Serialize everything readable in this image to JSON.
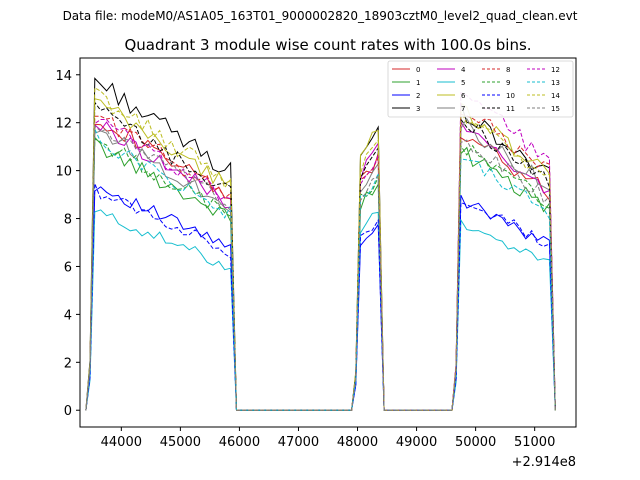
{
  "chart_data": {
    "type": "line",
    "suptitle": "Data file: modeM0/AS1A05_163T01_9000002820_18903cztM0_level2_quad_clean.evt",
    "title": "Quadrant 3 module wise count rates with 100.0s bins.",
    "xlabel": "",
    "ylabel": "",
    "x_offset_label": "+2.914e8",
    "xlim": [
      43300,
      51700
    ],
    "ylim": [
      -0.7,
      14.7
    ],
    "xticks": [
      44000,
      45000,
      46000,
      47000,
      48000,
      49000,
      50000,
      51000
    ],
    "xtick_labels": [
      "44000",
      "45000",
      "46000",
      "47000",
      "48000",
      "49000",
      "50000",
      "51000"
    ],
    "yticks": [
      0,
      2,
      4,
      6,
      8,
      10,
      12,
      14
    ],
    "ytick_labels": [
      "0",
      "2",
      "4",
      "6",
      "8",
      "10",
      "12",
      "14"
    ],
    "grid": false,
    "legend_location": "top-right",
    "segments": [
      {
        "x_start": 43550,
        "x_end": 45850,
        "x_step": 100,
        "decay": 0.28
      },
      {
        "x_start": 48050,
        "x_end": 48350,
        "x_step": 100,
        "decay": -0.1
      },
      {
        "x_start": 49750,
        "x_end": 51250,
        "x_step": 100,
        "decay": 0.22
      }
    ],
    "zero_level": 0,
    "series": [
      {
        "name": "0",
        "color": "#d62728",
        "dash": "solid",
        "seg_levels": [
          12.3,
          9.5,
          11.6
        ]
      },
      {
        "name": "1",
        "color": "#2ca02c",
        "dash": "solid",
        "seg_levels": [
          11.1,
          8.6,
          10.8
        ]
      },
      {
        "name": "2",
        "color": "#0000ff",
        "dash": "solid",
        "seg_levels": [
          9.4,
          7.0,
          8.8
        ]
      },
      {
        "name": "3",
        "color": "#000000",
        "dash": "solid",
        "seg_levels": [
          13.8,
          10.5,
          12.5
        ]
      },
      {
        "name": "4",
        "color": "#bf00bf",
        "dash": "solid",
        "seg_levels": [
          12.0,
          9.9,
          11.8
        ]
      },
      {
        "name": "5",
        "color": "#17becf",
        "dash": "solid",
        "seg_levels": [
          8.3,
          7.5,
          7.8
        ]
      },
      {
        "name": "6",
        "color": "#bcbd22",
        "dash": "solid",
        "seg_levels": [
          12.9,
          10.8,
          12.6
        ]
      },
      {
        "name": "7",
        "color": "#7f7f7f",
        "dash": "solid",
        "seg_levels": [
          11.8,
          9.2,
          12.0
        ]
      },
      {
        "name": "8",
        "color": "#d62728",
        "dash": "dashed",
        "seg_levels": [
          12.4,
          9.7,
          12.7
        ]
      },
      {
        "name": "9",
        "color": "#2ca02c",
        "dash": "dashed",
        "seg_levels": [
          11.3,
          8.8,
          11.1
        ]
      },
      {
        "name": "10",
        "color": "#0000ff",
        "dash": "dashed",
        "seg_levels": [
          9.2,
          7.2,
          8.9
        ]
      },
      {
        "name": "11",
        "color": "#000000",
        "dash": "dashed",
        "seg_levels": [
          12.6,
          9.8,
          12.2
        ]
      },
      {
        "name": "12",
        "color": "#bf00bf",
        "dash": "dashed",
        "seg_levels": [
          12.2,
          9.4,
          13.4
        ]
      },
      {
        "name": "13",
        "color": "#17becf",
        "dash": "dashed",
        "seg_levels": [
          11.4,
          8.9,
          10.6
        ]
      },
      {
        "name": "14",
        "color": "#bcbd22",
        "dash": "dashed",
        "seg_levels": [
          13.2,
          10.1,
          12.4
        ]
      },
      {
        "name": "15",
        "color": "#7f7f7f",
        "dash": "dashed",
        "seg_levels": [
          11.9,
          9.0,
          11.3
        ]
      }
    ]
  }
}
